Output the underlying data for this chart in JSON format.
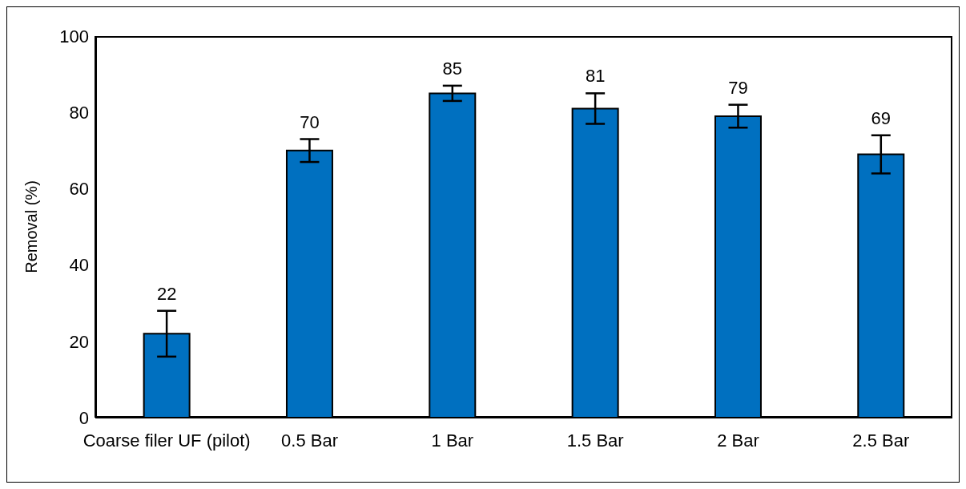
{
  "chart_data": {
    "type": "bar",
    "ylabel": "Removal (%)",
    "categories": [
      "Coarse filer UF (pilot)",
      "0.5 Bar",
      "1 Bar",
      "1.5 Bar",
      "2 Bar",
      "2.5 Bar"
    ],
    "values": [
      22,
      70,
      85,
      81,
      79,
      69
    ],
    "errors": [
      6,
      3,
      2,
      4,
      3,
      5
    ],
    "color": "#0070c0",
    "ylim": [
      0,
      100
    ],
    "yticks": [
      0,
      20,
      40,
      60,
      80,
      100
    ],
    "grid": false,
    "data_labels": true,
    "legend": false
  }
}
